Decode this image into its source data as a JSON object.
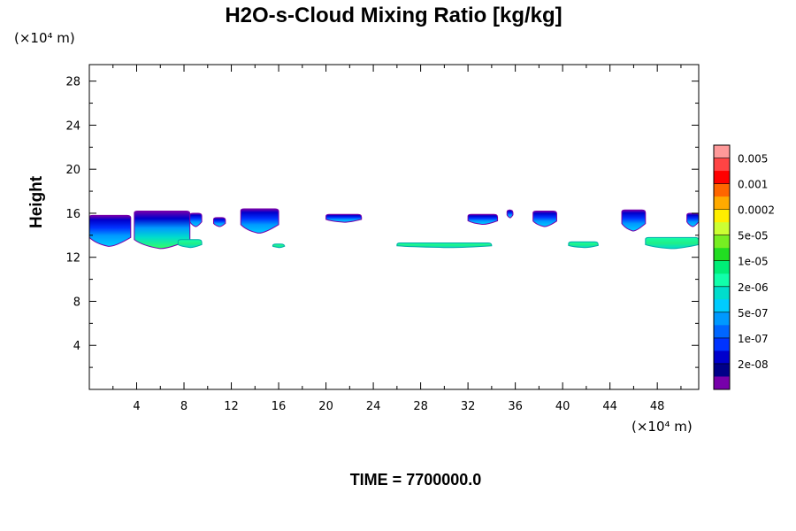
{
  "chart_data": {
    "type": "heatmap",
    "title": "H2O-s-Cloud Mixing Ratio [kg/kg]",
    "xlabel": "",
    "ylabel": "Height",
    "x_unit": "(×10⁴ m)",
    "y_unit": "(×10⁴ m)",
    "xlim": [
      0,
      51.5
    ],
    "ylim": [
      0,
      29.5
    ],
    "x_ticks": [
      4,
      8,
      12,
      16,
      20,
      24,
      28,
      32,
      36,
      40,
      44,
      48
    ],
    "y_ticks": [
      4,
      8,
      12,
      16,
      20,
      24,
      28
    ],
    "annotation": "TIME = 7700000.0",
    "colorbar": {
      "labels": [
        "0.005",
        "0.001",
        "0.0002",
        "5e-05",
        "1e-05",
        "2e-06",
        "5e-07",
        "1e-07",
        "2e-08"
      ],
      "colors": [
        "#ff9999",
        "#ff4444",
        "#ff0000",
        "#ff6600",
        "#ffaa00",
        "#ffee00",
        "#ccff33",
        "#77ee22",
        "#22dd22",
        "#00ee77",
        "#11ffaa",
        "#00ddcc",
        "#00ccff",
        "#0099ff",
        "#0066ff",
        "#0033ff",
        "#0000cc",
        "#000088",
        "#7700aa"
      ]
    },
    "cloud_regions": [
      {
        "x0": 0,
        "x1": 3.5,
        "ybot": 13.0,
        "ytop": 15.8,
        "level": "1e-07"
      },
      {
        "x0": 3.8,
        "x1": 8.5,
        "ybot": 12.8,
        "ytop": 16.2,
        "level": "1e-05"
      },
      {
        "x0": 8.5,
        "x1": 9.5,
        "ybot": 14.8,
        "ytop": 16.0,
        "level": "2e-08"
      },
      {
        "x0": 10.5,
        "x1": 11.5,
        "ybot": 14.8,
        "ytop": 15.6,
        "level": "2e-08"
      },
      {
        "x0": 12.8,
        "x1": 16.0,
        "ybot": 14.2,
        "ytop": 16.4,
        "level": "1e-07"
      },
      {
        "x0": 20.0,
        "x1": 23.0,
        "ybot": 15.2,
        "ytop": 15.9,
        "level": "2e-08"
      },
      {
        "x0": 32.0,
        "x1": 34.5,
        "ybot": 15.0,
        "ytop": 15.9,
        "level": "2e-08"
      },
      {
        "x0": 35.3,
        "x1": 35.8,
        "ybot": 15.6,
        "ytop": 16.3,
        "level": "2e-08"
      },
      {
        "x0": 37.5,
        "x1": 39.5,
        "ybot": 14.8,
        "ytop": 16.2,
        "level": "1e-07"
      },
      {
        "x0": 45.0,
        "x1": 47.0,
        "ybot": 14.4,
        "ytop": 16.3,
        "level": "1e-07"
      },
      {
        "x0": 50.5,
        "x1": 51.5,
        "ybot": 14.8,
        "ytop": 16.0,
        "level": "1e-07"
      },
      {
        "x0": 26.0,
        "x1": 34.0,
        "ybot": 12.9,
        "ytop": 13.3,
        "level": "2e-06"
      },
      {
        "x0": 7.5,
        "x1": 9.5,
        "ybot": 12.9,
        "ytop": 13.6,
        "level": "2e-06"
      },
      {
        "x0": 15.5,
        "x1": 16.5,
        "ybot": 12.9,
        "ytop": 13.2,
        "level": "2e-06"
      },
      {
        "x0": 40.5,
        "x1": 43.0,
        "ybot": 12.9,
        "ytop": 13.4,
        "level": "2e-06"
      },
      {
        "x0": 47.0,
        "x1": 51.5,
        "ybot": 12.8,
        "ytop": 13.8,
        "level": "2e-06"
      }
    ]
  }
}
